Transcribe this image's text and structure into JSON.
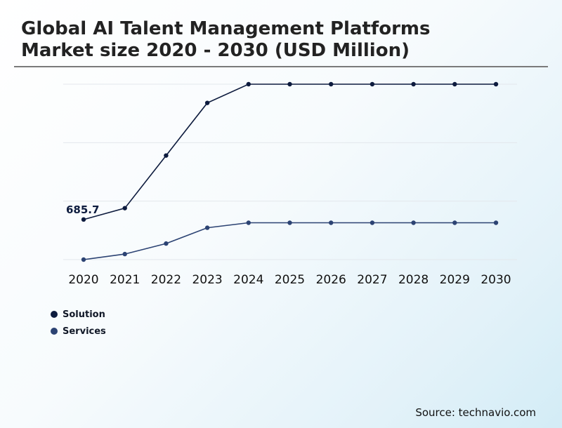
{
  "header": {
    "title_line1": "Global AI Talent Management Platforms",
    "title_line2": "Market size 2020 - 2030 (USD Million)"
  },
  "source": "Source: technavio.com",
  "colors": {
    "solution": "#0d1b3e",
    "services": "#2c4373",
    "grid": "#e3e7ec"
  },
  "chart_data": {
    "type": "line",
    "x": [
      "2020",
      "2021",
      "2022",
      "2023",
      "2024",
      "2025",
      "2026",
      "2027",
      "2028",
      "2029",
      "2030"
    ],
    "ylim": [
      0,
      3000
    ],
    "grid": true,
    "legend_position": "bottom-left",
    "series": [
      {
        "name": "Solution",
        "values": [
          685.7,
          880,
          1780,
          2680,
          3000,
          3000,
          3000,
          3000,
          3000,
          3000,
          3000
        ],
        "labels": [
          "685.7",
          "",
          "",
          "",
          "",
          "",
          "",
          "",
          "",
          "",
          ""
        ]
      },
      {
        "name": "Services",
        "values": [
          0,
          95,
          275,
          545,
          630,
          630,
          630,
          630,
          630,
          630,
          630
        ],
        "labels": [
          "",
          "",
          "",
          "",
          "",
          "",
          "",
          "",
          "",
          "",
          ""
        ]
      }
    ]
  }
}
